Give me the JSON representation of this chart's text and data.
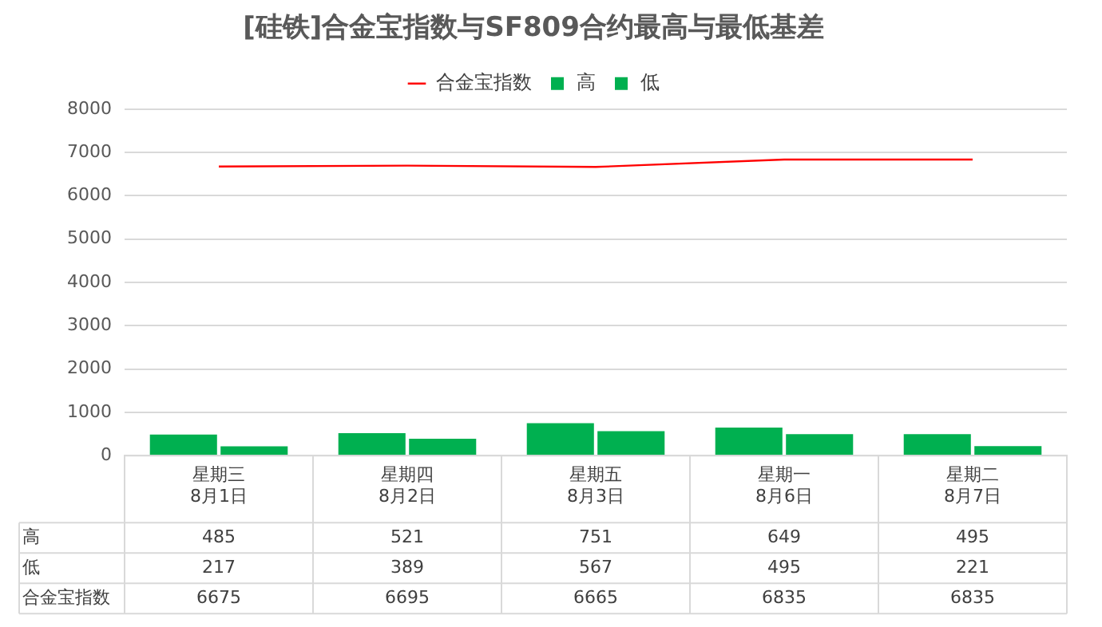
{
  "chart_data": {
    "type": "bar",
    "title": "[硅铁]合金宝指数与SF809合约最高与最低基差",
    "categories": [
      "星期三\n8月1日",
      "星期四\n8月2日",
      "星期五\n8月3日",
      "星期一\n8月6日",
      "星期二\n8月7日"
    ],
    "series": [
      {
        "name": "高",
        "color": "#00b050",
        "values": [
          485,
          521,
          751,
          649,
          495
        ]
      },
      {
        "name": "低",
        "color": "#00b050",
        "values": [
          217,
          389,
          567,
          495,
          221
        ]
      },
      {
        "name": "合金宝指数",
        "type": "line",
        "color": "#ff0000",
        "values": [
          6675,
          6695,
          6665,
          6835,
          6835
        ]
      }
    ],
    "ylim": [
      0,
      8000
    ],
    "yticks": [
      0,
      1000,
      2000,
      3000,
      4000,
      5000,
      6000,
      7000,
      8000
    ],
    "grid": "y",
    "legend": "top",
    "marker": "none",
    "data_labels": true
  }
}
